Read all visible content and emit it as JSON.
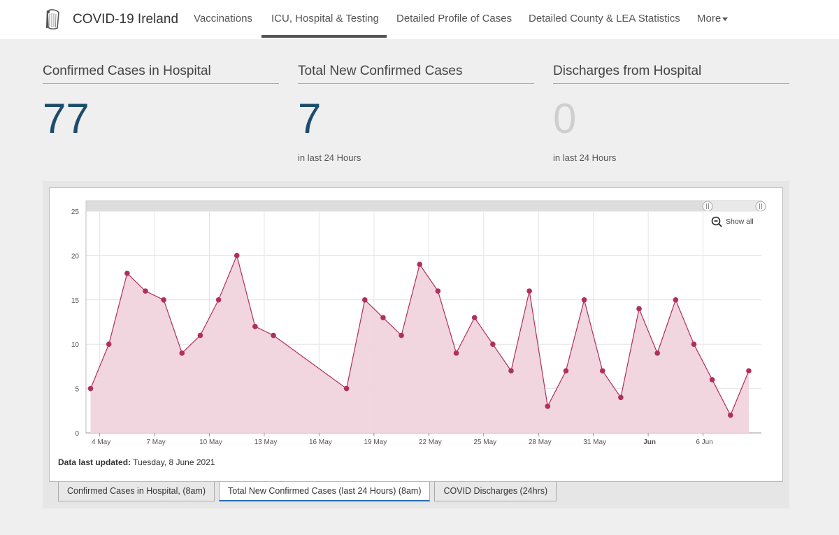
{
  "nav": {
    "brand": "COVID-19 Ireland",
    "items": [
      {
        "label": "Vaccinations"
      },
      {
        "label": "ICU, Hospital & Testing"
      },
      {
        "label": "Detailed Profile of Cases"
      },
      {
        "label": "Detailed County & LEA Statistics"
      },
      {
        "label": "More"
      }
    ]
  },
  "stats": [
    {
      "title": "Confirmed Cases in Hospital",
      "value": "77",
      "sub": ""
    },
    {
      "title": "Total New Confirmed Cases",
      "value": "7",
      "sub": "in last 24 Hours"
    },
    {
      "title": "Discharges from Hospital",
      "value": "0",
      "sub": "in last 24 Hours"
    }
  ],
  "chart": {
    "show_all": "Show all",
    "updated_label": "Data last updated:",
    "updated_value": "Tuesday, 8 June 2021"
  },
  "tabs": [
    {
      "label": "Confirmed Cases in Hospital, (8am)"
    },
    {
      "label": "Total New Confirmed Cases (last 24 Hours) (8am)"
    },
    {
      "label": "COVID Discharges (24hrs)"
    }
  ],
  "colors": {
    "accent": "#1d4c6c",
    "series": "#b0305c",
    "fill": "#f0d3dd",
    "tab_active": "#2a6fb5"
  },
  "chart_data": {
    "type": "area",
    "title": "",
    "xlabel": "",
    "ylabel": "",
    "ylim": [
      0,
      25
    ],
    "yticks": [
      0,
      5,
      10,
      15,
      20,
      25
    ],
    "xtick_labels": [
      "4 May",
      "7 May",
      "10 May",
      "13 May",
      "16 May",
      "19 May",
      "22 May",
      "25 May",
      "28 May",
      "31 May",
      "Jun",
      "6 Jun"
    ],
    "x": [
      "2021-05-03",
      "2021-05-04",
      "2021-05-05",
      "2021-05-06",
      "2021-05-07",
      "2021-05-08",
      "2021-05-09",
      "2021-05-10",
      "2021-05-11",
      "2021-05-12",
      "2021-05-13",
      "2021-05-17",
      "2021-05-18",
      "2021-05-19",
      "2021-05-20",
      "2021-05-21",
      "2021-05-22",
      "2021-05-23",
      "2021-05-24",
      "2021-05-25",
      "2021-05-26",
      "2021-05-27",
      "2021-05-28",
      "2021-05-29",
      "2021-05-30",
      "2021-05-31",
      "2021-06-01",
      "2021-06-02",
      "2021-06-03",
      "2021-06-04",
      "2021-06-05",
      "2021-06-06",
      "2021-06-07",
      "2021-06-08"
    ],
    "series": [
      {
        "values": [
          5,
          10,
          18,
          16,
          15,
          9,
          11,
          15,
          20,
          12,
          11,
          5,
          15,
          13,
          11,
          19,
          16,
          9,
          13,
          10,
          7,
          16,
          3,
          7,
          15,
          7,
          4,
          14,
          9,
          15,
          10,
          6,
          2,
          7
        ]
      }
    ],
    "grid": true,
    "legend": "none"
  }
}
